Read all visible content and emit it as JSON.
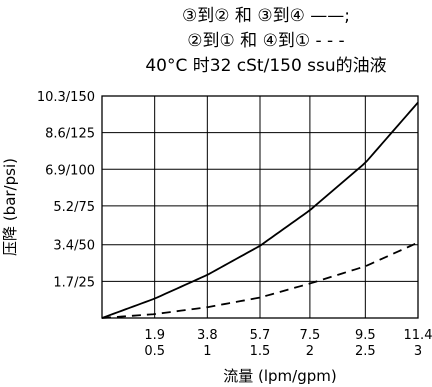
{
  "chart_data": {
    "type": "line",
    "title_lines": [
      "③到② 和 ③到④ ——;",
      "②到① 和 ④到① - - -",
      "40°C 时32 cSt/150 ssu的油液"
    ],
    "xlabel": "流量 (lpm/gpm)",
    "ylabel": "压降 (bar/psi)",
    "x_units_primary": "lpm",
    "x_units_secondary": "gpm",
    "y_units_primary": "bar",
    "y_units_secondary": "psi",
    "xlim": [
      0,
      11.4
    ],
    "ylim": [
      0,
      10.3
    ],
    "grid": true,
    "x_ticks": [
      {
        "value": 1.9,
        "label_primary": "1.9",
        "label_secondary": "0.5"
      },
      {
        "value": 3.8,
        "label_primary": "3.8",
        "label_secondary": "1"
      },
      {
        "value": 5.7,
        "label_primary": "5.7",
        "label_secondary": "1.5"
      },
      {
        "value": 7.5,
        "label_primary": "7.5",
        "label_secondary": "2"
      },
      {
        "value": 9.5,
        "label_primary": "9.5",
        "label_secondary": "2.5"
      },
      {
        "value": 11.4,
        "label_primary": "11.4",
        "label_secondary": "3"
      }
    ],
    "y_ticks": [
      {
        "value": 1.7,
        "label": "1.7/25"
      },
      {
        "value": 3.4,
        "label": "3.4/50"
      },
      {
        "value": 5.2,
        "label": "5.2/75"
      },
      {
        "value": 6.9,
        "label": "6.9/100"
      },
      {
        "value": 8.6,
        "label": "8.6/125"
      },
      {
        "value": 10.3,
        "label": "10.3/150"
      }
    ],
    "series": [
      {
        "style": "solid",
        "color": "#000000",
        "x": [
          0,
          1.9,
          3.8,
          5.7,
          7.5,
          9.5,
          11.4
        ],
        "y": [
          0,
          0.9,
          2.0,
          3.35,
          5.0,
          7.2,
          10.0
        ]
      },
      {
        "style": "dashed",
        "color": "#000000",
        "x": [
          0,
          1.9,
          3.8,
          5.7,
          7.5,
          9.5,
          11.4
        ],
        "y": [
          0,
          0.18,
          0.5,
          0.95,
          1.6,
          2.4,
          3.5
        ]
      }
    ]
  }
}
